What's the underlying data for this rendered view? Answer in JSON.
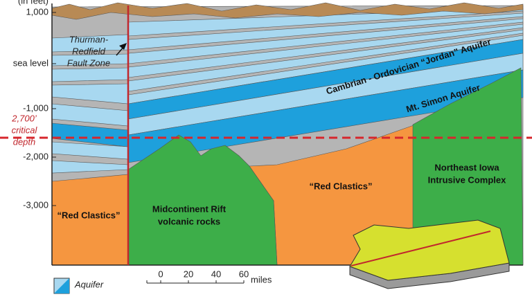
{
  "axis": {
    "unit": "(in feet)",
    "labels": [
      "1,000",
      "sea level",
      "-1,000",
      "-2,000",
      "-3,000"
    ]
  },
  "critical_depth": [
    "2,700’",
    "critical",
    "depth"
  ],
  "labels": {
    "fault": [
      "Thurman-",
      "Redfield",
      "Fault Zone"
    ],
    "jordan": "Cambrian - Ordovician “Jordan” Aquifer",
    "mt_simon": "Mt. Simon Aquifer",
    "red_clastics_left": "“Red Clastics”",
    "red_clastics_right": "“Red Clastics”",
    "rift": [
      "Midcontinent Rift",
      "volcanic rocks"
    ],
    "intrusive": [
      "Northeast Iowa",
      "Intrusive Complex"
    ]
  },
  "legend": {
    "aquifer": "Aquifer"
  },
  "scale": {
    "ticks": [
      "0",
      "20",
      "40",
      "60"
    ],
    "unit": "miles"
  }
}
